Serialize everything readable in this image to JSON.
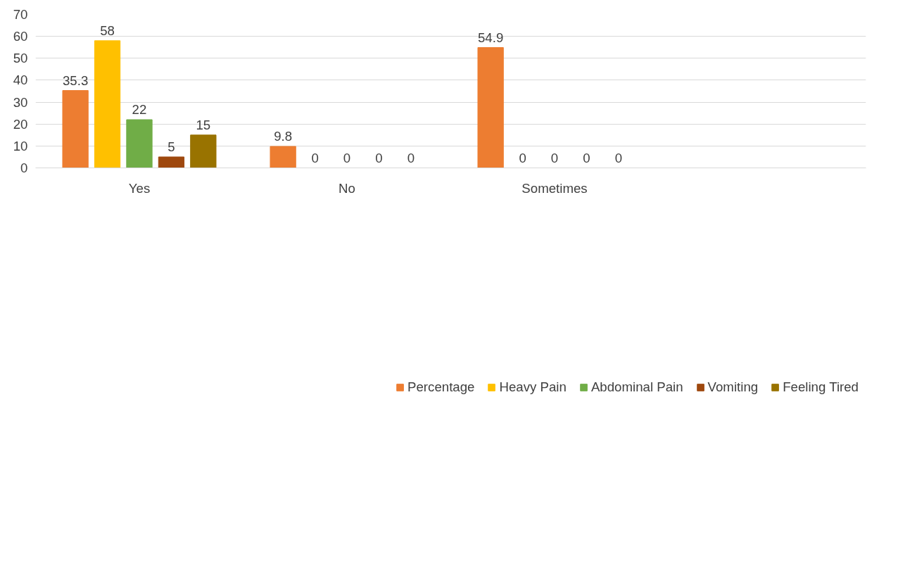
{
  "chart_data": {
    "type": "bar",
    "categories": [
      "Yes",
      "No",
      "Sometimes",
      null
    ],
    "series": [
      {
        "name": "Percentage",
        "color": "#ed7d31",
        "values": [
          35.3,
          9.8,
          54.9,
          null
        ]
      },
      {
        "name": "Heavy Pain",
        "color": "#ffc000",
        "values": [
          58,
          0,
          0,
          null
        ]
      },
      {
        "name": "Abdominal Pain",
        "color": "#70ad47",
        "values": [
          22,
          0,
          0,
          null
        ]
      },
      {
        "name": "Vomiting",
        "color": "#9e480e",
        "values": [
          5,
          0,
          0,
          null
        ]
      },
      {
        "name": "Feeling Tired",
        "color": "#997300",
        "values": [
          15,
          0,
          0,
          null
        ]
      }
    ],
    "ylim": [
      0,
      70
    ],
    "yticks": [
      0,
      10,
      20,
      30,
      40,
      50,
      60,
      70
    ],
    "grid": "y",
    "legend": "bottom",
    "data_labels": true
  }
}
